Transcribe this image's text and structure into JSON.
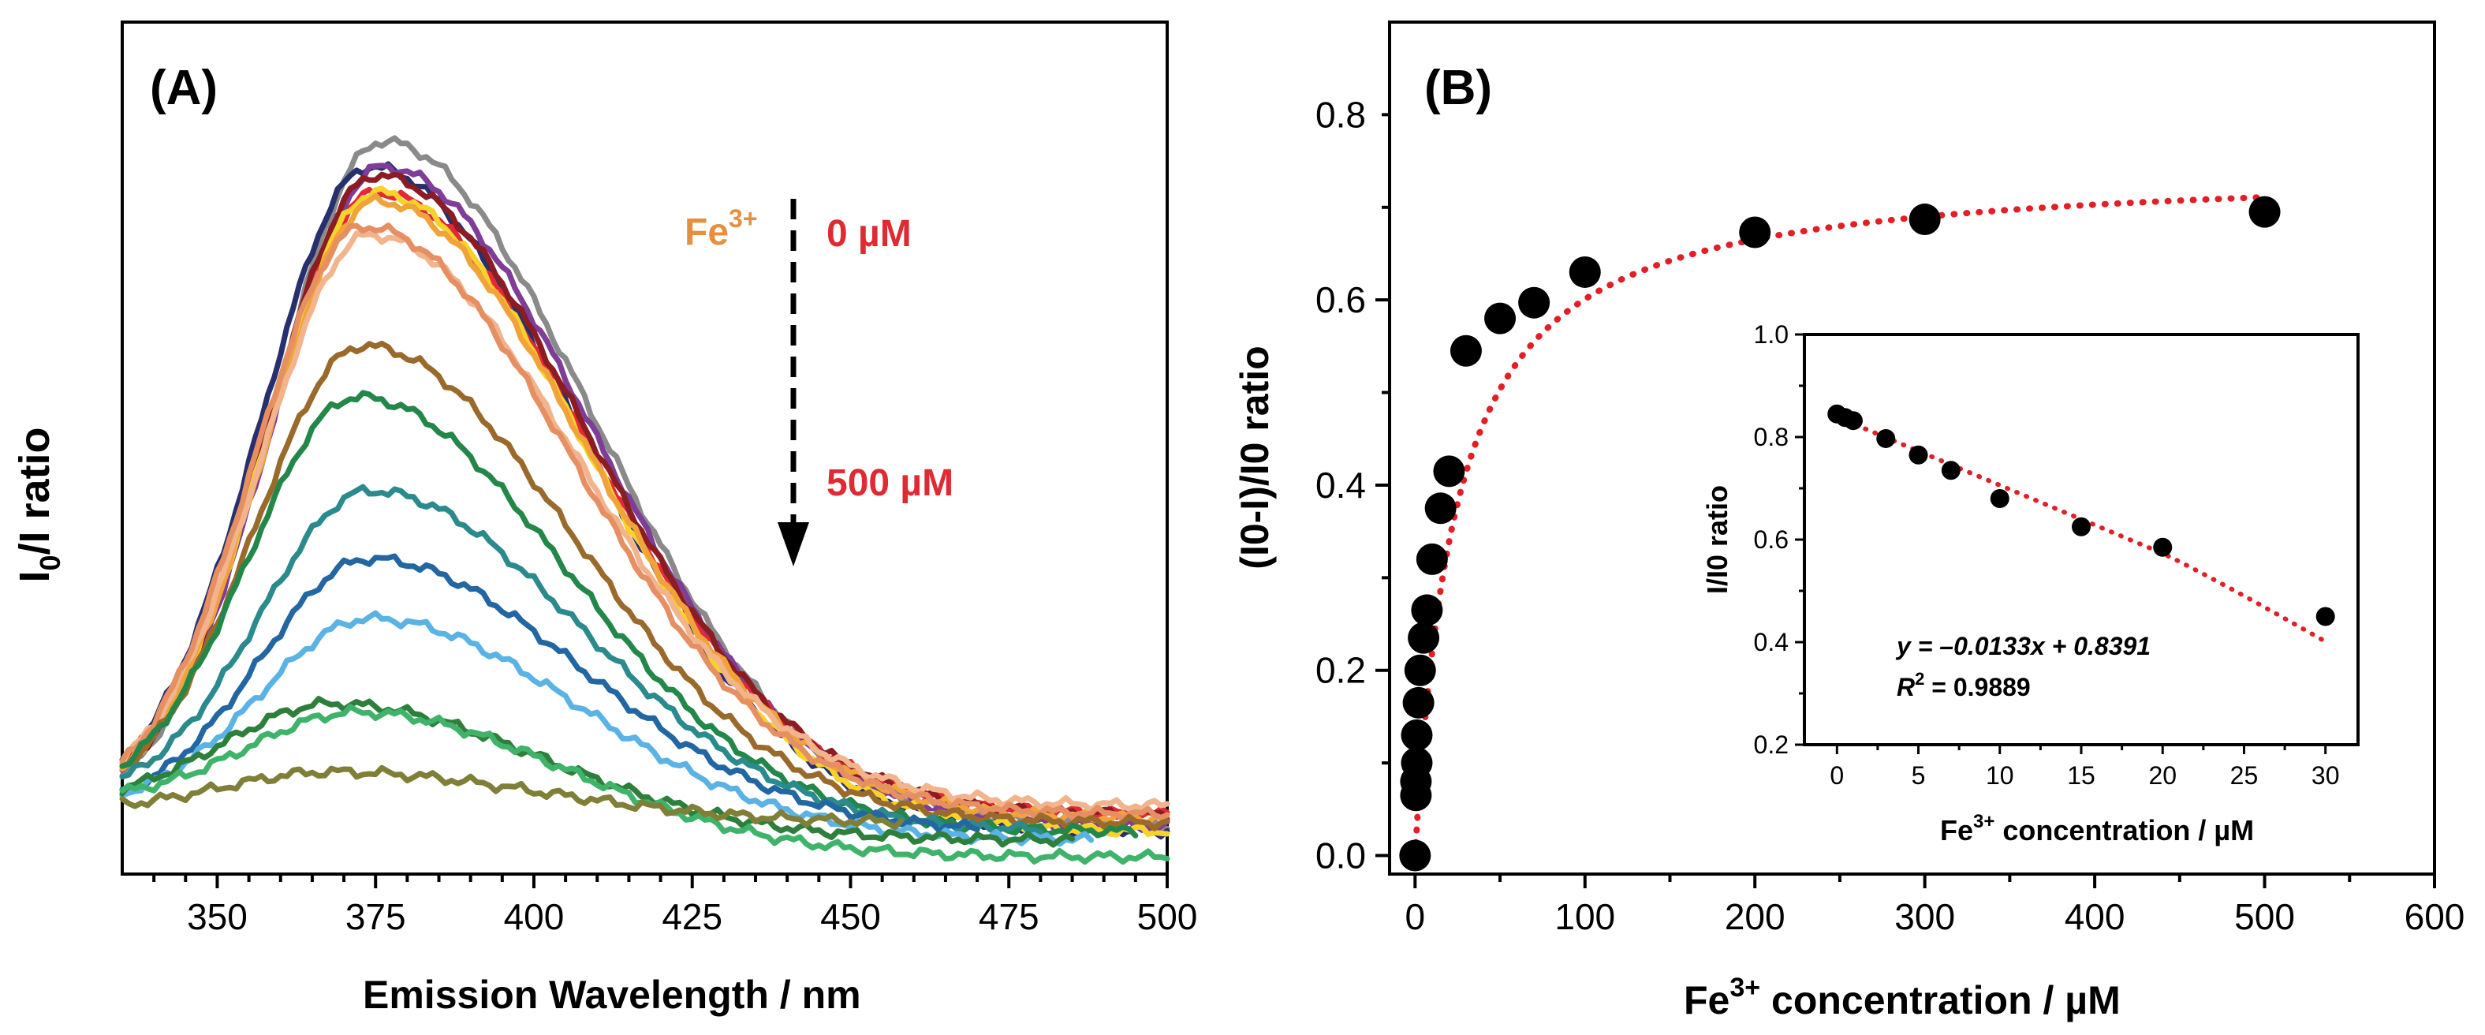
{
  "chart_data": [
    {
      "panel": "(A)",
      "type": "line",
      "title": "",
      "xlabel": "Emission Wavelength / nm",
      "ylabel_main": "I",
      "ylabel_sub": "0",
      "ylabel_rest": "/I ratio",
      "xlim": [
        335,
        500
      ],
      "ylim": [
        0,
        1.0
      ],
      "x_ticks": [
        350,
        375,
        400,
        425,
        450,
        475,
        500
      ],
      "y_ticks_shown": false,
      "annotation": {
        "ion": "Fe",
        "ion_sup": "3+",
        "start_label": "0 µM",
        "end_label": "500 µM",
        "arrow": "dashed, pointing down"
      },
      "series": [
        {
          "name": "gray",
          "color": "#8a8a8a",
          "peak_x": 376,
          "peak": 0.86,
          "tail": 0.055,
          "end_x": 500
        },
        {
          "name": "navy",
          "color": "#27306e",
          "peak_x": 374,
          "peak": 0.83,
          "tail": 0.05,
          "end_x": 500
        },
        {
          "name": "purple",
          "color": "#7e3d96",
          "peak_x": 376,
          "peak": 0.83,
          "tail": 0.055,
          "end_x": 500
        },
        {
          "name": "red",
          "color": "#e12a36",
          "peak_x": 375,
          "peak": 0.8,
          "tail": 0.07,
          "end_x": 500
        },
        {
          "name": "dark-red",
          "color": "#8a1c22",
          "peak_x": 375,
          "peak": 0.82,
          "tail": 0.07,
          "end_x": 500
        },
        {
          "name": "yellow",
          "color": "#f6d22b",
          "peak_x": 375,
          "peak": 0.8,
          "tail": 0.05,
          "end_x": 500
        },
        {
          "name": "orange",
          "color": "#f0a33a",
          "peak_x": 375,
          "peak": 0.79,
          "tail": 0.065,
          "end_x": 500
        },
        {
          "name": "peach",
          "color": "#f2b48c",
          "peak_x": 374,
          "peak": 0.75,
          "tail": 0.08,
          "end_x": 500
        },
        {
          "name": "salmon",
          "color": "#e68f63",
          "peak_x": 373,
          "peak": 0.76,
          "tail": 0.07,
          "end_x": 500
        },
        {
          "name": "brown",
          "color": "#9a6a2c",
          "peak_x": 373,
          "peak": 0.62,
          "tail": 0.06,
          "end_x": 500
        },
        {
          "name": "green",
          "color": "#24874a",
          "peak_x": 372,
          "peak": 0.56,
          "tail": 0.05,
          "end_x": 495
        },
        {
          "name": "teal",
          "color": "#2a8a8c",
          "peak_x": 374,
          "peak": 0.45,
          "tail": 0.05,
          "end_x": 480
        },
        {
          "name": "blue",
          "color": "#2266a2",
          "peak_x": 374,
          "peak": 0.37,
          "tail": 0.05,
          "end_x": 470
        },
        {
          "name": "light-blue",
          "color": "#5ab3e4",
          "peak_x": 374,
          "peak": 0.3,
          "tail": 0.04,
          "end_x": 488
        },
        {
          "name": "dark-green",
          "color": "#2e7f3c",
          "peak_x": 368,
          "peak": 0.2,
          "tail": 0.04,
          "end_x": 485
        },
        {
          "name": "bright-green",
          "color": "#3fb36a",
          "peak_x": 372,
          "peak": 0.19,
          "tail": 0.02,
          "end_x": 500
        },
        {
          "name": "olive",
          "color": "#7f7f38",
          "peak_x": 368,
          "peak": 0.12,
          "tail": 0.06,
          "end_x": 458
        }
      ]
    },
    {
      "panel": "(B)",
      "type": "scatter",
      "title": "",
      "xlabel_pre": "Fe",
      "xlabel_sup": "3+",
      "xlabel_post": " concentration / µM",
      "ylabel": "(I0-I)/I0 ratio",
      "xlim": [
        -15,
        600
      ],
      "ylim": [
        -0.02,
        0.9
      ],
      "x_ticks": [
        0,
        100,
        200,
        300,
        400,
        500,
        600
      ],
      "y_ticks": [
        0.0,
        0.2,
        0.4,
        0.6,
        0.8
      ],
      "y_tick_labels": [
        "0.0",
        "0.2",
        "0.4",
        "0.6",
        "0.8"
      ],
      "points": [
        {
          "x": 0,
          "y": 0.0
        },
        {
          "x": 0.5,
          "y": 0.065
        },
        {
          "x": 0.5,
          "y": 0.08
        },
        {
          "x": 1,
          "y": 0.1
        },
        {
          "x": 1,
          "y": 0.13
        },
        {
          "x": 2,
          "y": 0.165
        },
        {
          "x": 3,
          "y": 0.2
        },
        {
          "x": 5,
          "y": 0.235
        },
        {
          "x": 7,
          "y": 0.265
        },
        {
          "x": 10,
          "y": 0.32
        },
        {
          "x": 15,
          "y": 0.375
        },
        {
          "x": 20,
          "y": 0.415
        },
        {
          "x": 30,
          "y": 0.545
        },
        {
          "x": 50,
          "y": 0.58
        },
        {
          "x": 70,
          "y": 0.597
        },
        {
          "x": 100,
          "y": 0.63
        },
        {
          "x": 200,
          "y": 0.673
        },
        {
          "x": 300,
          "y": 0.687
        },
        {
          "x": 500,
          "y": 0.695
        }
      ],
      "fit": {
        "type": "saturation",
        "ymax": 0.745,
        "k": 24,
        "color": "#e21f26",
        "style": "dotted"
      }
    },
    {
      "panel": "inset",
      "type": "scatter",
      "xlabel_pre": "Fe",
      "xlabel_sup": "3+",
      "xlabel_post": " concentration / µM",
      "ylabel": "I/I0 ratio",
      "xlim": [
        -2,
        32
      ],
      "ylim": [
        0.2,
        1.0
      ],
      "x_ticks": [
        0,
        5,
        10,
        15,
        20,
        25,
        30
      ],
      "y_ticks": [
        0.2,
        0.4,
        0.6,
        0.8,
        1.0
      ],
      "y_tick_labels": [
        "0.2",
        "0.4",
        "0.6",
        "0.8",
        "1.0"
      ],
      "points": [
        {
          "x": 0,
          "y": 0.845
        },
        {
          "x": 0.5,
          "y": 0.838
        },
        {
          "x": 1,
          "y": 0.832
        },
        {
          "x": 3,
          "y": 0.797
        },
        {
          "x": 5,
          "y": 0.765
        },
        {
          "x": 7,
          "y": 0.735
        },
        {
          "x": 10,
          "y": 0.68
        },
        {
          "x": 15,
          "y": 0.625
        },
        {
          "x": 20,
          "y": 0.585
        },
        {
          "x": 30,
          "y": 0.45
        }
      ],
      "fit": {
        "slope": -0.0133,
        "intercept": 0.8391,
        "color": "#e21f26",
        "style": "dotted"
      },
      "equation_label": "y = –0.0133x + 0.8391",
      "r2_label": "R",
      "r2_sup": "2",
      "r2_value": " = 0.9889"
    }
  ]
}
